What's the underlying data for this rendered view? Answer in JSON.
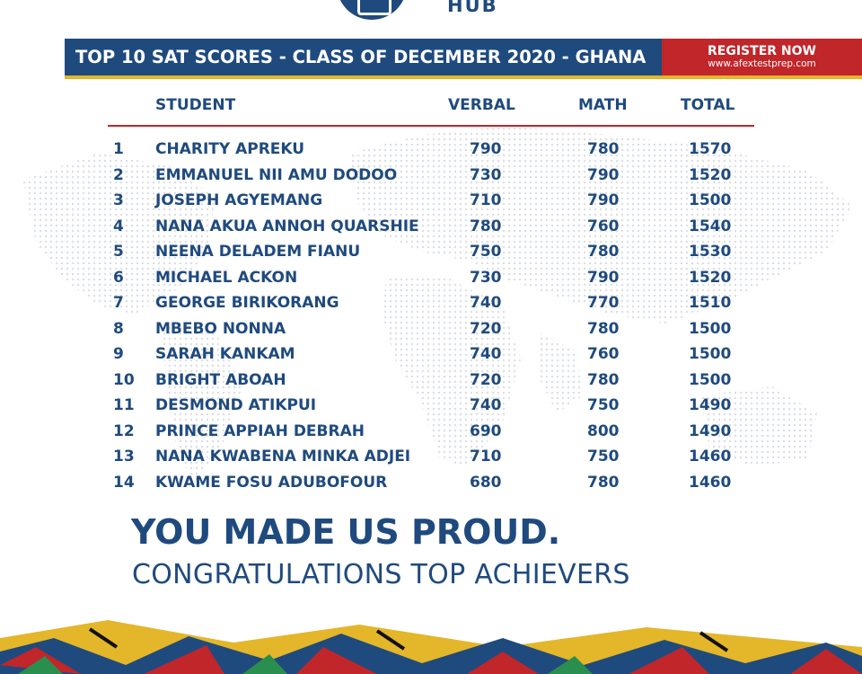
{
  "logo": {
    "text": "HUB"
  },
  "banner": {
    "title": "TOP 10 SAT SCORES - CLASS OF DECEMBER 2020 - GHANA",
    "register_label": "REGISTER NOW",
    "register_url": "www.afextestprep.com"
  },
  "table": {
    "headers": {
      "student": "STUDENT",
      "verbal": "VERBAL",
      "math": "MATH",
      "total": "TOTAL"
    },
    "rows": [
      {
        "rank": "1",
        "name": "CHARITY APREKU",
        "verbal": "790",
        "math": "780",
        "total": "1570"
      },
      {
        "rank": "2",
        "name": "EMMANUEL NII AMU DODOO",
        "verbal": "730",
        "math": "790",
        "total": "1520"
      },
      {
        "rank": "3",
        "name": "JOSEPH AGYEMANG",
        "verbal": "710",
        "math": "790",
        "total": "1500"
      },
      {
        "rank": "4",
        "name": "NANA AKUA ANNOH QUARSHIE",
        "verbal": "780",
        "math": "760",
        "total": "1540"
      },
      {
        "rank": "5",
        "name": "NEENA DELADEM FIANU",
        "verbal": "750",
        "math": "780",
        "total": "1530"
      },
      {
        "rank": "6",
        "name": "MICHAEL ACKON",
        "verbal": "730",
        "math": "790",
        "total": "1520"
      },
      {
        "rank": "7",
        "name": "GEORGE BIRIKORANG",
        "verbal": "740",
        "math": "770",
        "total": "1510"
      },
      {
        "rank": "8",
        "name": "MBEBO NONNA",
        "verbal": "720",
        "math": "780",
        "total": "1500"
      },
      {
        "rank": "9",
        "name": "SARAH KANKAM",
        "verbal": "740",
        "math": "760",
        "total": "1500"
      },
      {
        "rank": "10",
        "name": "BRIGHT ABOAH",
        "verbal": "720",
        "math": "780",
        "total": "1500"
      },
      {
        "rank": "11",
        "name": "DESMOND ATIKPUI",
        "verbal": "740",
        "math": "750",
        "total": "1490"
      },
      {
        "rank": "12",
        "name": "PRINCE APPIAH DEBRAH",
        "verbal": "690",
        "math": "800",
        "total": "1490"
      },
      {
        "rank": "13",
        "name": "NANA KWABENA MINKA ADJEI",
        "verbal": "710",
        "math": "750",
        "total": "1460"
      },
      {
        "rank": "14",
        "name": "KWAME FOSU ADUBOFOUR",
        "verbal": "680",
        "math": "780",
        "total": "1460"
      }
    ]
  },
  "tagline": {
    "headline": "YOU MADE US PROUD.",
    "subline": "CONGRATULATIONS TOP ACHIEVERS"
  },
  "colors": {
    "navy": "#1f4a7e",
    "red": "#c0262a",
    "gold": "#e4b62a"
  }
}
